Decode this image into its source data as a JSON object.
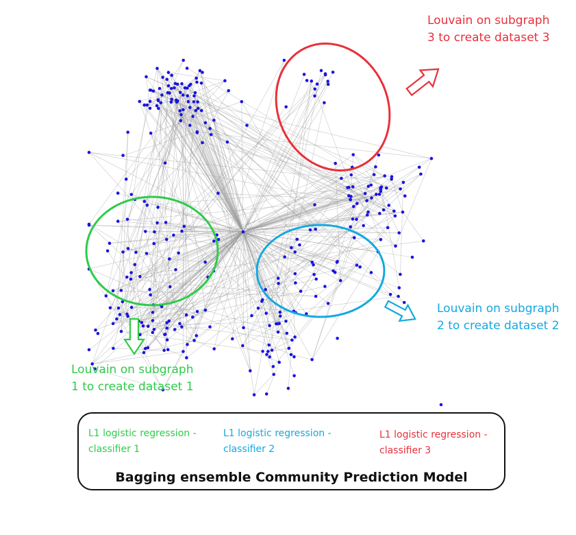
{
  "colors": {
    "node": "#1a14e0",
    "edge": "#9a9a9a",
    "red": "#e8303a",
    "blue": "#14a8e0",
    "green": "#2ecb4a",
    "text_dark": "#111111"
  },
  "annotations": {
    "subgraph_3": "Louvain on subgraph\n3 to create dataset 3",
    "subgraph_2": "Louvain on subgraph\n2 to create dataset 2",
    "subgraph_1": "Louvain on subgraph\n1 to create dataset 1"
  },
  "model": {
    "title": "Bagging ensemble Community Prediction Model",
    "classifier_1": "L1 logistic regression -\nclassifier 1",
    "classifier_2": "L1 logistic regression -\nclassifier 2",
    "classifier_3": "L1 logistic regression -\nclassifier 3"
  }
}
